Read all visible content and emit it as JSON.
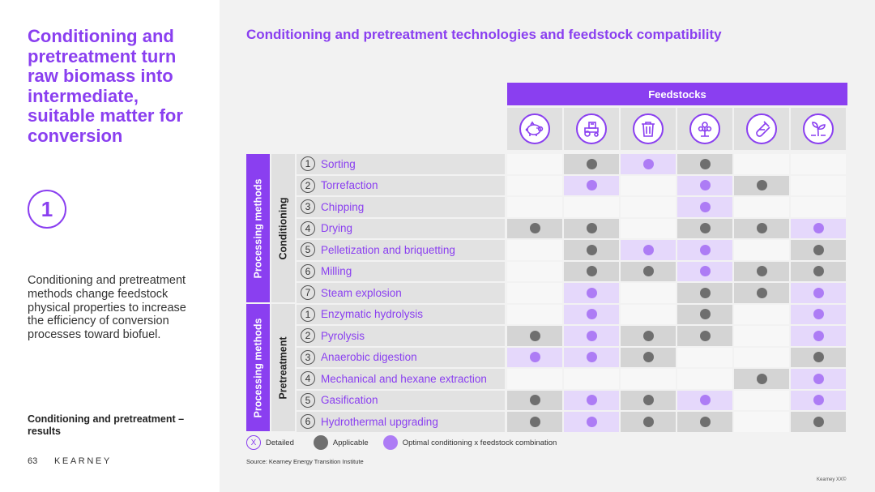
{
  "sidebar": {
    "headline": "Conditioning and pretreatment turn raw biomass into intermediate, suitable matter for conversion",
    "number": "1",
    "description": "Conditioning and pretreatment methods change feedstock physical properties to increase the efficiency of conversion processes toward biofuel.",
    "section_label": "Conditioning and pretreatment – results",
    "page_number": "63",
    "brand": "KEARNEY"
  },
  "main": {
    "title": "Conditioning and pretreatment technologies and feedstock compatibility",
    "feedstocks_header": "Feedstocks",
    "feedstock_icons": [
      "pig-icon",
      "tractor-icon",
      "trash-can-icon",
      "tree-icon",
      "test-tube-icon",
      "plant-sprout-icon"
    ],
    "colors": {
      "accent": "#8a3ff0",
      "applicable": "#6f6f6f",
      "optimal": "#ad7cf5"
    },
    "groups": [
      {
        "side_label": "Processing methods",
        "group_label": "Conditioning",
        "rows": [
          {
            "num": "1",
            "label": "Sorting",
            "cells": [
              "",
              "A",
              "O",
              "A",
              "",
              ""
            ]
          },
          {
            "num": "2",
            "label": "Torrefaction",
            "cells": [
              "",
              "O",
              "",
              "O",
              "A",
              ""
            ]
          },
          {
            "num": "3",
            "label": "Chipping",
            "cells": [
              "",
              "",
              "",
              "O",
              "",
              ""
            ]
          },
          {
            "num": "4",
            "label": "Drying",
            "cells": [
              "A",
              "A",
              "",
              "A",
              "A",
              "O"
            ]
          },
          {
            "num": "5",
            "label": "Pelletization and briquetting",
            "cells": [
              "",
              "A",
              "O",
              "O",
              "",
              "A"
            ]
          },
          {
            "num": "6",
            "label": "Milling",
            "cells": [
              "",
              "A",
              "A",
              "O",
              "A",
              "A"
            ]
          },
          {
            "num": "7",
            "label": "Steam explosion",
            "cells": [
              "",
              "O",
              "",
              "A",
              "A",
              "O"
            ]
          }
        ]
      },
      {
        "side_label": "Processing methods",
        "group_label": "Pretreatment",
        "rows": [
          {
            "num": "1",
            "label": "Enzymatic hydrolysis",
            "cells": [
              "",
              "O",
              "",
              "A",
              "",
              "O"
            ]
          },
          {
            "num": "2",
            "label": "Pyrolysis",
            "cells": [
              "A",
              "O",
              "A",
              "A",
              "",
              "O"
            ]
          },
          {
            "num": "3",
            "label": "Anaerobic digestion",
            "cells": [
              "O",
              "O",
              "A",
              "",
              "",
              "A"
            ]
          },
          {
            "num": "4",
            "label": "Mechanical and hexane extraction",
            "cells": [
              "",
              "",
              "",
              "",
              "A",
              "O"
            ]
          },
          {
            "num": "5",
            "label": "Gasification",
            "cells": [
              "A",
              "O",
              "A",
              "O",
              "",
              "O"
            ]
          },
          {
            "num": "6",
            "label": "Hydrothermal upgrading",
            "cells": [
              "A",
              "O",
              "A",
              "A",
              "",
              "A"
            ]
          }
        ]
      }
    ],
    "legend": {
      "detailed_symbol": "X",
      "detailed": "Detailed",
      "applicable": "Applicable",
      "optimal": "Optimal conditioning x feedstock combination"
    },
    "source": "Source: Kearney Energy Transition Institute",
    "copyright": "Kearney XX©"
  }
}
